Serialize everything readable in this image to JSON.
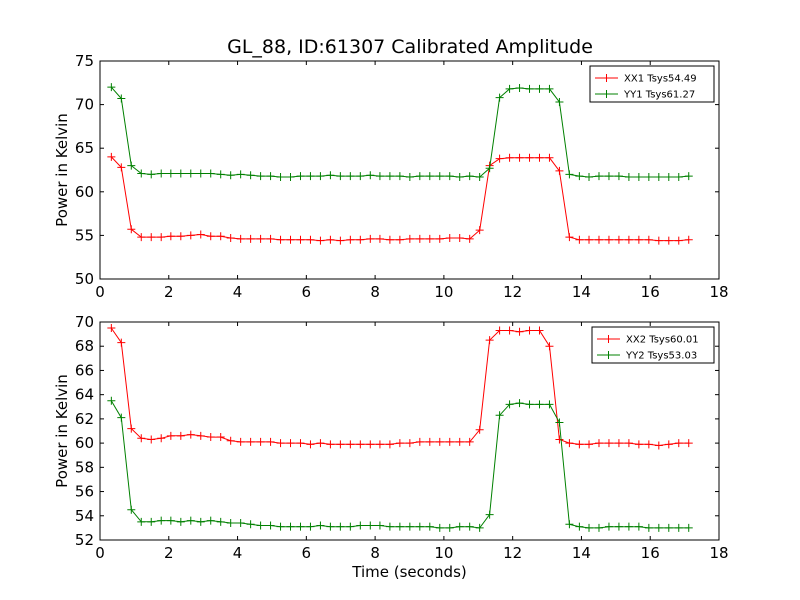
{
  "chart_data": [
    {
      "type": "line",
      "title": "GL_88, ID:61307 Calibrated Amplitude",
      "xlabel": "",
      "ylabel": "Power in Kelvin",
      "xlim": [
        0,
        18
      ],
      "ylim": [
        50,
        75
      ],
      "xticks": [
        0,
        2,
        4,
        6,
        8,
        10,
        12,
        14,
        16,
        18
      ],
      "yticks": [
        50,
        55,
        60,
        65,
        70,
        75
      ],
      "legend_position": "top-right",
      "x": [
        0.33,
        0.62,
        0.91,
        1.2,
        1.49,
        1.78,
        2.06,
        2.35,
        2.64,
        2.93,
        3.22,
        3.51,
        3.8,
        4.09,
        4.38,
        4.67,
        4.96,
        5.25,
        5.54,
        5.83,
        6.12,
        6.41,
        6.7,
        6.99,
        7.28,
        7.57,
        7.86,
        8.14,
        8.43,
        8.72,
        9.01,
        9.3,
        9.59,
        9.88,
        10.17,
        10.46,
        10.75,
        11.04,
        11.33,
        11.62,
        11.91,
        12.2,
        12.49,
        12.78,
        13.07,
        13.36,
        13.65,
        13.94,
        14.22,
        14.51,
        14.8,
        15.09,
        15.38,
        15.67,
        15.96,
        16.25,
        16.54,
        16.83,
        17.12
      ],
      "series": [
        {
          "name": "XX1 Tsys54.49",
          "color": "#ff0000",
          "values": [
            64.0,
            62.8,
            55.7,
            54.8,
            54.8,
            54.8,
            54.9,
            54.9,
            55.0,
            55.1,
            54.9,
            54.9,
            54.7,
            54.6,
            54.6,
            54.6,
            54.6,
            54.5,
            54.5,
            54.5,
            54.5,
            54.4,
            54.5,
            54.4,
            54.5,
            54.5,
            54.6,
            54.6,
            54.5,
            54.5,
            54.6,
            54.6,
            54.6,
            54.6,
            54.7,
            54.7,
            54.6,
            55.6,
            63.0,
            63.8,
            63.9,
            63.9,
            63.9,
            63.9,
            63.9,
            62.4,
            54.8,
            54.5,
            54.5,
            54.5,
            54.5,
            54.5,
            54.5,
            54.5,
            54.5,
            54.4,
            54.4,
            54.4,
            54.5
          ]
        },
        {
          "name": "YY1 Tsys61.27",
          "color": "#008000",
          "values": [
            72.0,
            70.7,
            63.0,
            62.1,
            62.0,
            62.1,
            62.1,
            62.1,
            62.1,
            62.1,
            62.1,
            62.0,
            61.9,
            62.0,
            61.9,
            61.8,
            61.8,
            61.7,
            61.7,
            61.8,
            61.8,
            61.8,
            61.9,
            61.8,
            61.8,
            61.8,
            61.9,
            61.8,
            61.8,
            61.8,
            61.7,
            61.8,
            61.8,
            61.8,
            61.8,
            61.7,
            61.8,
            61.7,
            62.7,
            70.8,
            71.8,
            71.9,
            71.8,
            71.8,
            71.8,
            70.3,
            62.0,
            61.8,
            61.7,
            61.8,
            61.8,
            61.8,
            61.7,
            61.7,
            61.7,
            61.7,
            61.7,
            61.7,
            61.8
          ]
        }
      ]
    },
    {
      "type": "line",
      "title": "",
      "xlabel": "Time (seconds)",
      "ylabel": "Power in Kelvin",
      "xlim": [
        0,
        18
      ],
      "ylim": [
        52,
        70
      ],
      "xticks": [
        0,
        2,
        4,
        6,
        8,
        10,
        12,
        14,
        16,
        18
      ],
      "yticks": [
        52,
        54,
        56,
        58,
        60,
        62,
        64,
        66,
        68,
        70
      ],
      "legend_position": "top-right",
      "x": [
        0.33,
        0.62,
        0.91,
        1.2,
        1.49,
        1.78,
        2.06,
        2.35,
        2.64,
        2.93,
        3.22,
        3.51,
        3.8,
        4.09,
        4.38,
        4.67,
        4.96,
        5.25,
        5.54,
        5.83,
        6.12,
        6.41,
        6.7,
        6.99,
        7.28,
        7.57,
        7.86,
        8.14,
        8.43,
        8.72,
        9.01,
        9.3,
        9.59,
        9.88,
        10.17,
        10.46,
        10.75,
        11.04,
        11.33,
        11.62,
        11.91,
        12.2,
        12.49,
        12.78,
        13.07,
        13.36,
        13.65,
        13.94,
        14.22,
        14.51,
        14.8,
        15.09,
        15.38,
        15.67,
        15.96,
        16.25,
        16.54,
        16.83,
        17.12
      ],
      "series": [
        {
          "name": "XX2 Tsys60.01",
          "color": "#ff0000",
          "values": [
            69.5,
            68.3,
            61.2,
            60.4,
            60.3,
            60.4,
            60.6,
            60.6,
            60.7,
            60.6,
            60.5,
            60.5,
            60.2,
            60.1,
            60.1,
            60.1,
            60.1,
            60.0,
            60.0,
            60.0,
            59.9,
            60.0,
            59.9,
            59.9,
            59.9,
            59.9,
            59.9,
            59.9,
            59.9,
            60.0,
            60.0,
            60.1,
            60.1,
            60.1,
            60.1,
            60.1,
            60.1,
            61.1,
            68.5,
            69.3,
            69.3,
            69.2,
            69.3,
            69.3,
            68.0,
            60.3,
            60.0,
            59.9,
            59.9,
            60.0,
            60.0,
            60.0,
            60.0,
            59.9,
            59.9,
            59.8,
            59.9,
            60.0,
            60.0
          ],
          "_": "x shared"
        },
        {
          "name": "YY2 Tsys53.03",
          "color": "#008000",
          "values": [
            63.5,
            62.1,
            54.5,
            53.5,
            53.5,
            53.6,
            53.6,
            53.5,
            53.6,
            53.5,
            53.6,
            53.5,
            53.4,
            53.4,
            53.3,
            53.2,
            53.2,
            53.1,
            53.1,
            53.1,
            53.1,
            53.2,
            53.1,
            53.1,
            53.1,
            53.2,
            53.2,
            53.2,
            53.1,
            53.1,
            53.1,
            53.1,
            53.1,
            53.0,
            53.0,
            53.1,
            53.1,
            53.0,
            54.1,
            62.3,
            63.2,
            63.3,
            63.2,
            63.2,
            63.2,
            61.7,
            53.3,
            53.1,
            53.0,
            53.0,
            53.1,
            53.1,
            53.1,
            53.1,
            53.0,
            53.0,
            53.0,
            53.0,
            53.0
          ]
        }
      ]
    }
  ]
}
